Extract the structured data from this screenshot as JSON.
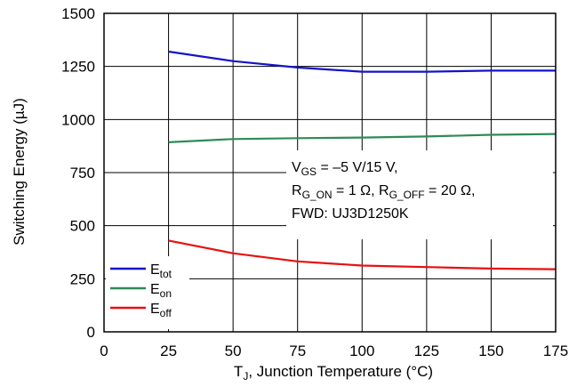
{
  "chart_data": {
    "type": "line",
    "xlabel": {
      "main": "T",
      "sub": "J",
      "rest": ", Junction Temperature (°C)"
    },
    "ylabel": "Switching Energy (µJ)",
    "xlim": [
      0,
      175
    ],
    "ylim": [
      0,
      1500
    ],
    "xticks": [
      0,
      25,
      50,
      75,
      100,
      125,
      150,
      175
    ],
    "yticks": [
      0,
      250,
      500,
      750,
      1000,
      1250,
      1500
    ],
    "grid": true,
    "legend_position": "bottom-left",
    "series": [
      {
        "name": {
          "main": "E",
          "sub": "tot"
        },
        "color": "#1414c8",
        "x": [
          25,
          50,
          75,
          100,
          125,
          150,
          175
        ],
        "y": [
          1320,
          1275,
          1245,
          1225,
          1225,
          1230,
          1230
        ]
      },
      {
        "name": {
          "main": "E",
          "sub": "on"
        },
        "color": "#2e8b57",
        "x": [
          25,
          50,
          75,
          100,
          125,
          150,
          175
        ],
        "y": [
          893,
          908,
          912,
          915,
          920,
          928,
          932
        ]
      },
      {
        "name": {
          "main": "E",
          "sub": "off"
        },
        "color": "#e81010",
        "x": [
          25,
          50,
          75,
          100,
          125,
          150,
          175
        ],
        "y": [
          430,
          370,
          332,
          312,
          305,
          298,
          295
        ]
      }
    ],
    "annotation": {
      "line1": [
        {
          "t": "V"
        },
        {
          "t": "GS",
          "sub": true
        },
        {
          "t": " = –5 V/15 V,"
        }
      ],
      "line2": [
        {
          "t": "R"
        },
        {
          "t": "G_ON",
          "sub": true
        },
        {
          "t": " = 1 Ω, R"
        },
        {
          "t": "G_OFF",
          "sub": true
        },
        {
          "t": " = 20 Ω,"
        }
      ],
      "line3": [
        {
          "t": "FWD: UJ3D1250K"
        }
      ]
    }
  }
}
